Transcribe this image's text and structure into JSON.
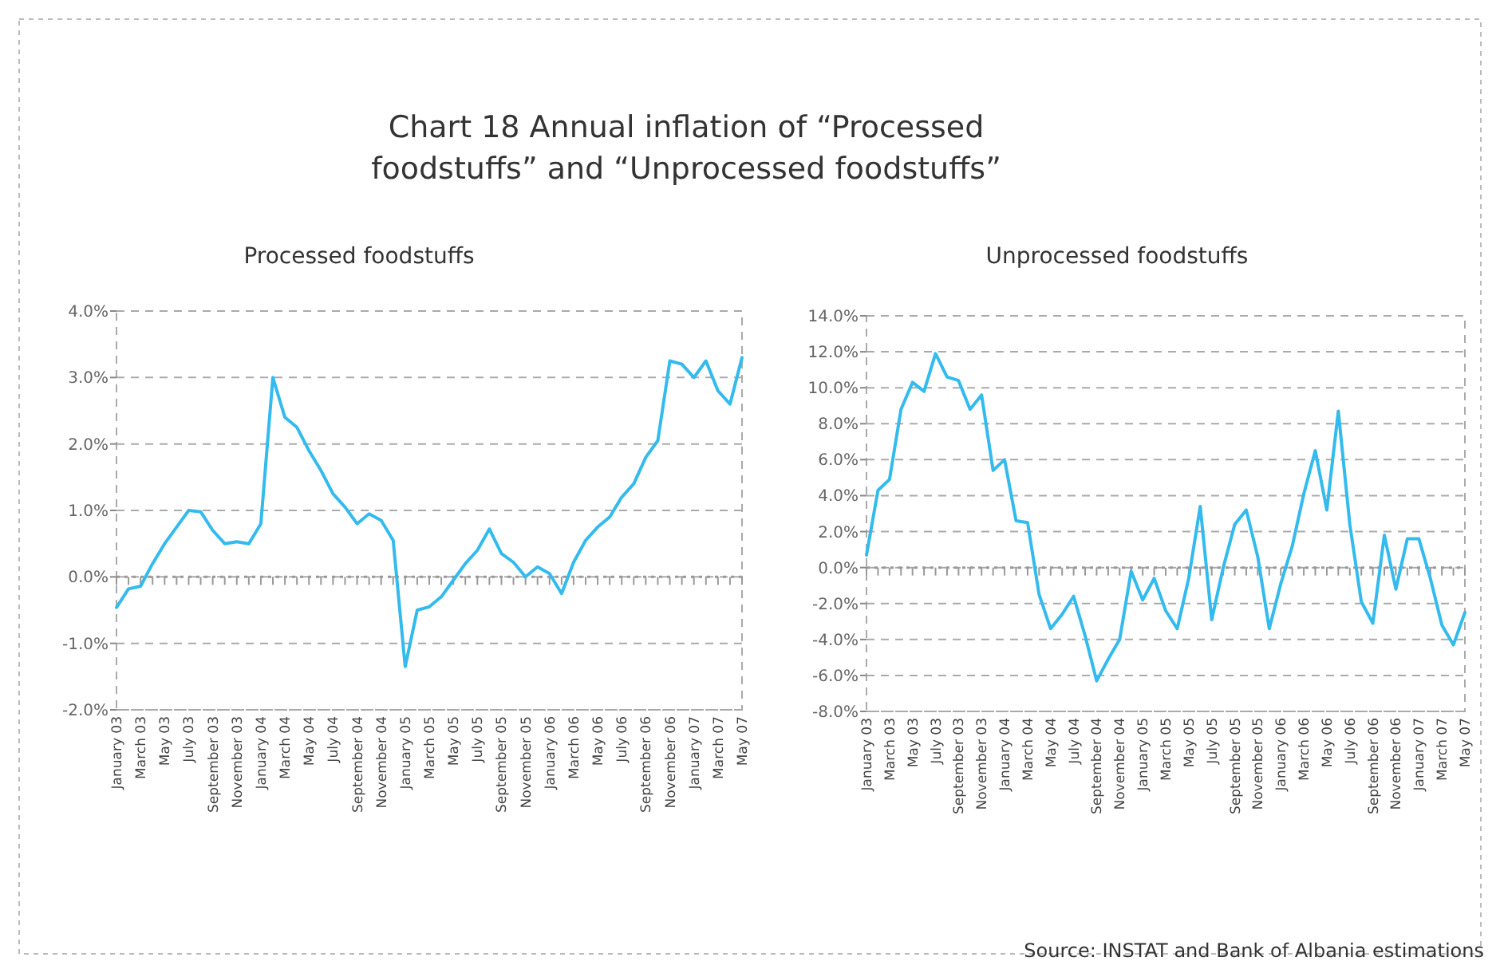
{
  "chart_data": [
    {
      "type": "line",
      "title": "Chart 18 Annual inflation of “Processed foodstuffs” and “Unprocessed foodstuffs”",
      "subtitle": "Processed foodstuffs",
      "categories": [
        "January 03",
        null,
        "March 03",
        null,
        "May 03",
        null,
        "July 03",
        null,
        "September 03",
        null,
        "November 03",
        null,
        "January 04",
        null,
        "March 04",
        null,
        "May 04",
        null,
        "July 04",
        null,
        "September 04",
        null,
        "November 04",
        null,
        "January 05",
        null,
        "March 05",
        null,
        "May 05",
        null,
        "July 05",
        null,
        "September 05",
        null,
        "November 05",
        null,
        "January 06",
        null,
        "March 06",
        null,
        "May 06",
        null,
        "July 06",
        null,
        "September 06",
        null,
        "November 06",
        null,
        "January 07",
        null,
        "March 07",
        null,
        "May 07"
      ],
      "series": [
        {
          "color": "#33bbee",
          "values": [
            -0.46,
            -0.18,
            -0.14,
            0.2,
            0.5,
            0.75,
            1.0,
            0.98,
            0.7,
            0.5,
            0.53,
            0.5,
            0.8,
            3.0,
            2.4,
            2.25,
            1.9,
            1.6,
            1.25,
            1.05,
            0.8,
            0.95,
            0.85,
            0.55,
            -1.35,
            -0.5,
            -0.45,
            -0.3,
            -0.05,
            0.2,
            0.4,
            0.72,
            0.35,
            0.22,
            0.0,
            0.15,
            0.05,
            -0.25,
            0.22,
            0.55,
            0.75,
            0.9,
            1.2,
            1.4,
            1.8,
            2.05,
            3.25,
            3.2,
            3.0,
            3.25,
            2.8,
            2.6,
            3.3
          ]
        }
      ],
      "ylim": [
        -2,
        4
      ],
      "yticks": [
        {
          "value": -2,
          "label": "-2.0%"
        },
        {
          "value": -1,
          "label": "-1.0%"
        },
        {
          "value": 0,
          "label": "0.0%"
        },
        {
          "value": 1,
          "label": "1.0%"
        },
        {
          "value": 2,
          "label": "2.0%"
        },
        {
          "value": 3,
          "label": "3.0%"
        },
        {
          "value": 4,
          "label": "4.0%"
        }
      ],
      "grid": "y",
      "marker": "none",
      "line_style": "solid",
      "ref_lines": [
        {
          "axis": "y",
          "value": 0,
          "line_style": "dotted",
          "color": "#999999"
        }
      ]
    },
    {
      "type": "line",
      "title": "Unprocessed foodstuffs",
      "categories": [
        "January 03",
        null,
        "March 03",
        null,
        "May 03",
        null,
        "July 03",
        null,
        "September 03",
        null,
        "November 03",
        null,
        "January 04",
        null,
        "March 04",
        null,
        "May 04",
        null,
        "July 04",
        null,
        "September 04",
        null,
        "November 04",
        null,
        "January 05",
        null,
        "March 05",
        null,
        "May 05",
        null,
        "July 05",
        null,
        "September 05",
        null,
        "November 05",
        null,
        "January 06",
        null,
        "March 06",
        null,
        "May 06",
        null,
        "July 06",
        null,
        "September 06",
        null,
        "November 06",
        null,
        "January 07",
        null,
        "March 07",
        null,
        "May 07"
      ],
      "series": [
        {
          "color": "#33bbee",
          "values": [
            0.7,
            4.3,
            4.9,
            8.8,
            10.3,
            9.8,
            11.9,
            10.6,
            10.4,
            8.8,
            9.6,
            5.4,
            6.0,
            2.6,
            2.5,
            -1.5,
            -3.4,
            -2.6,
            -1.6,
            -3.8,
            -6.3,
            -5.1,
            -4.0,
            -0.2,
            -1.8,
            -0.6,
            -2.4,
            -3.4,
            -0.6,
            3.4,
            -2.9,
            0,
            2.4,
            3.2,
            0.6,
            -3.4,
            -0.9,
            1.2,
            4.1,
            6.5,
            3.2,
            8.7,
            2.4,
            -1.9,
            -3.1,
            1.8,
            -1.2,
            1.6,
            1.6,
            -0.6,
            -3.2,
            -4.3,
            -2.5
          ]
        }
      ],
      "ylim": [
        -8,
        14
      ],
      "yticks": [
        {
          "value": -8,
          "label": "-8.0%"
        },
        {
          "value": -6,
          "label": "-6.0%"
        },
        {
          "value": -4,
          "label": "-4.0%"
        },
        {
          "value": -2,
          "label": "-2.0%"
        },
        {
          "value": 0,
          "label": "0.0%"
        },
        {
          "value": 2,
          "label": "2.0%"
        },
        {
          "value": 4,
          "label": "4.0%"
        },
        {
          "value": 6,
          "label": "6.0%"
        },
        {
          "value": 8,
          "label": "8.0%"
        },
        {
          "value": 10,
          "label": "10.0%"
        },
        {
          "value": 12,
          "label": "12.0%"
        },
        {
          "value": 14,
          "label": "14.0%"
        }
      ],
      "grid": "y",
      "marker": "none",
      "line_style": "solid",
      "ref_lines": [
        {
          "axis": "y",
          "value": 0,
          "line_style": "dotted",
          "color": "#999999"
        }
      ],
      "annotations": [
        "Source: INSTAT and Bank of Albania estimations"
      ]
    }
  ]
}
